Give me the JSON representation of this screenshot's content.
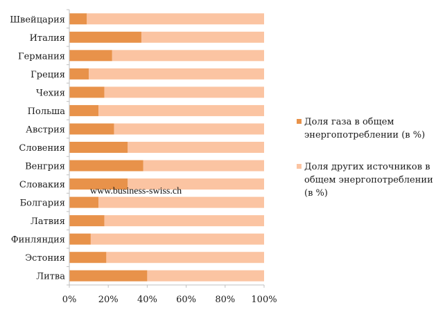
{
  "chart_data": {
    "type": "bar",
    "orientation": "horizontal",
    "stacked": true,
    "percent": true,
    "categories": [
      "Швейцария",
      "Италия",
      "Германия",
      "Греция",
      "Чехия",
      "Польша",
      "Австрия",
      "Словения",
      "Венгрия",
      "Словакия",
      "Болгария",
      "Латвия",
      "Финляндия",
      "Эстония",
      "Литва"
    ],
    "series": [
      {
        "name": "Доля газа в общем энергопотреблении (в %)",
        "color": "#E8924A",
        "values": [
          9,
          37,
          22,
          10,
          18,
          15,
          23,
          30,
          38,
          30,
          15,
          18,
          11,
          19,
          40
        ]
      },
      {
        "name": "Доля других источников в общем энергопотреблении (в %)",
        "color": "#FBC4A2",
        "values": [
          91,
          63,
          78,
          90,
          82,
          85,
          77,
          70,
          62,
          70,
          85,
          82,
          89,
          81,
          60
        ]
      }
    ],
    "x_ticks": [
      "0%",
      "20%",
      "40%",
      "60%",
      "80%",
      "100%"
    ],
    "xlim": [
      0,
      100
    ],
    "legend_position": "right",
    "grid": false,
    "title": "",
    "xlabel": "",
    "ylabel": ""
  },
  "legend": {
    "gas_lines": [
      "Доля газа в общем",
      "энергопотреблении (в %)"
    ],
    "other_lines": [
      "Доля других источников в",
      "общем энергопотреблении",
      "(в %)"
    ]
  },
  "watermark": "www.business-swiss.ch"
}
